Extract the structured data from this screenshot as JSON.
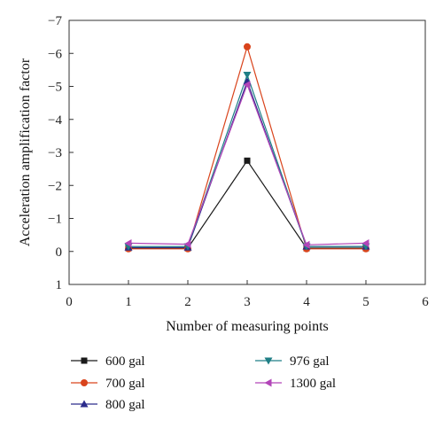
{
  "chart_data": {
    "type": "line",
    "title": "",
    "xlabel": "Number of measuring points",
    "ylabel": "Acceleration amplification factor",
    "xlim": [
      0,
      6
    ],
    "ylim": [
      1,
      -7
    ],
    "y_axis_inverted": true,
    "x_ticks": [
      0,
      1,
      2,
      3,
      4,
      5,
      6
    ],
    "y_ticks": [
      1,
      0,
      -1,
      -2,
      -3,
      -4,
      -5,
      -6,
      -7
    ],
    "x_tick_labels": [
      "0",
      "1",
      "2",
      "3",
      "4",
      "5",
      "6"
    ],
    "y_tick_labels": [
      "1",
      "0",
      "−1",
      "−2",
      "−3",
      "−4",
      "−5",
      "−6",
      "−7"
    ],
    "grid": false,
    "legend_position": "below plot, two columns",
    "x": [
      1,
      2,
      3,
      4,
      5
    ],
    "series": [
      {
        "name": "600 gal",
        "color": "#1a1a1a",
        "marker": "square",
        "values": [
          -0.1,
          -0.1,
          -2.75,
          -0.1,
          -0.1
        ]
      },
      {
        "name": "700 gal",
        "color": "#d9441c",
        "marker": "circle",
        "values": [
          -0.08,
          -0.08,
          -6.2,
          -0.08,
          -0.08
        ]
      },
      {
        "name": "800 gal",
        "color": "#2c2c8c",
        "marker": "triangle-up",
        "values": [
          -0.12,
          -0.12,
          -5.15,
          -0.15,
          -0.15
        ]
      },
      {
        "name": "976 gal",
        "color": "#1f7f86",
        "marker": "triangle-down",
        "values": [
          -0.15,
          -0.15,
          -5.35,
          -0.15,
          -0.15
        ]
      },
      {
        "name": "1300 gal",
        "color": "#b245b8",
        "marker": "triangle-left",
        "values": [
          -0.25,
          -0.22,
          -5.05,
          -0.2,
          -0.25
        ]
      }
    ]
  }
}
